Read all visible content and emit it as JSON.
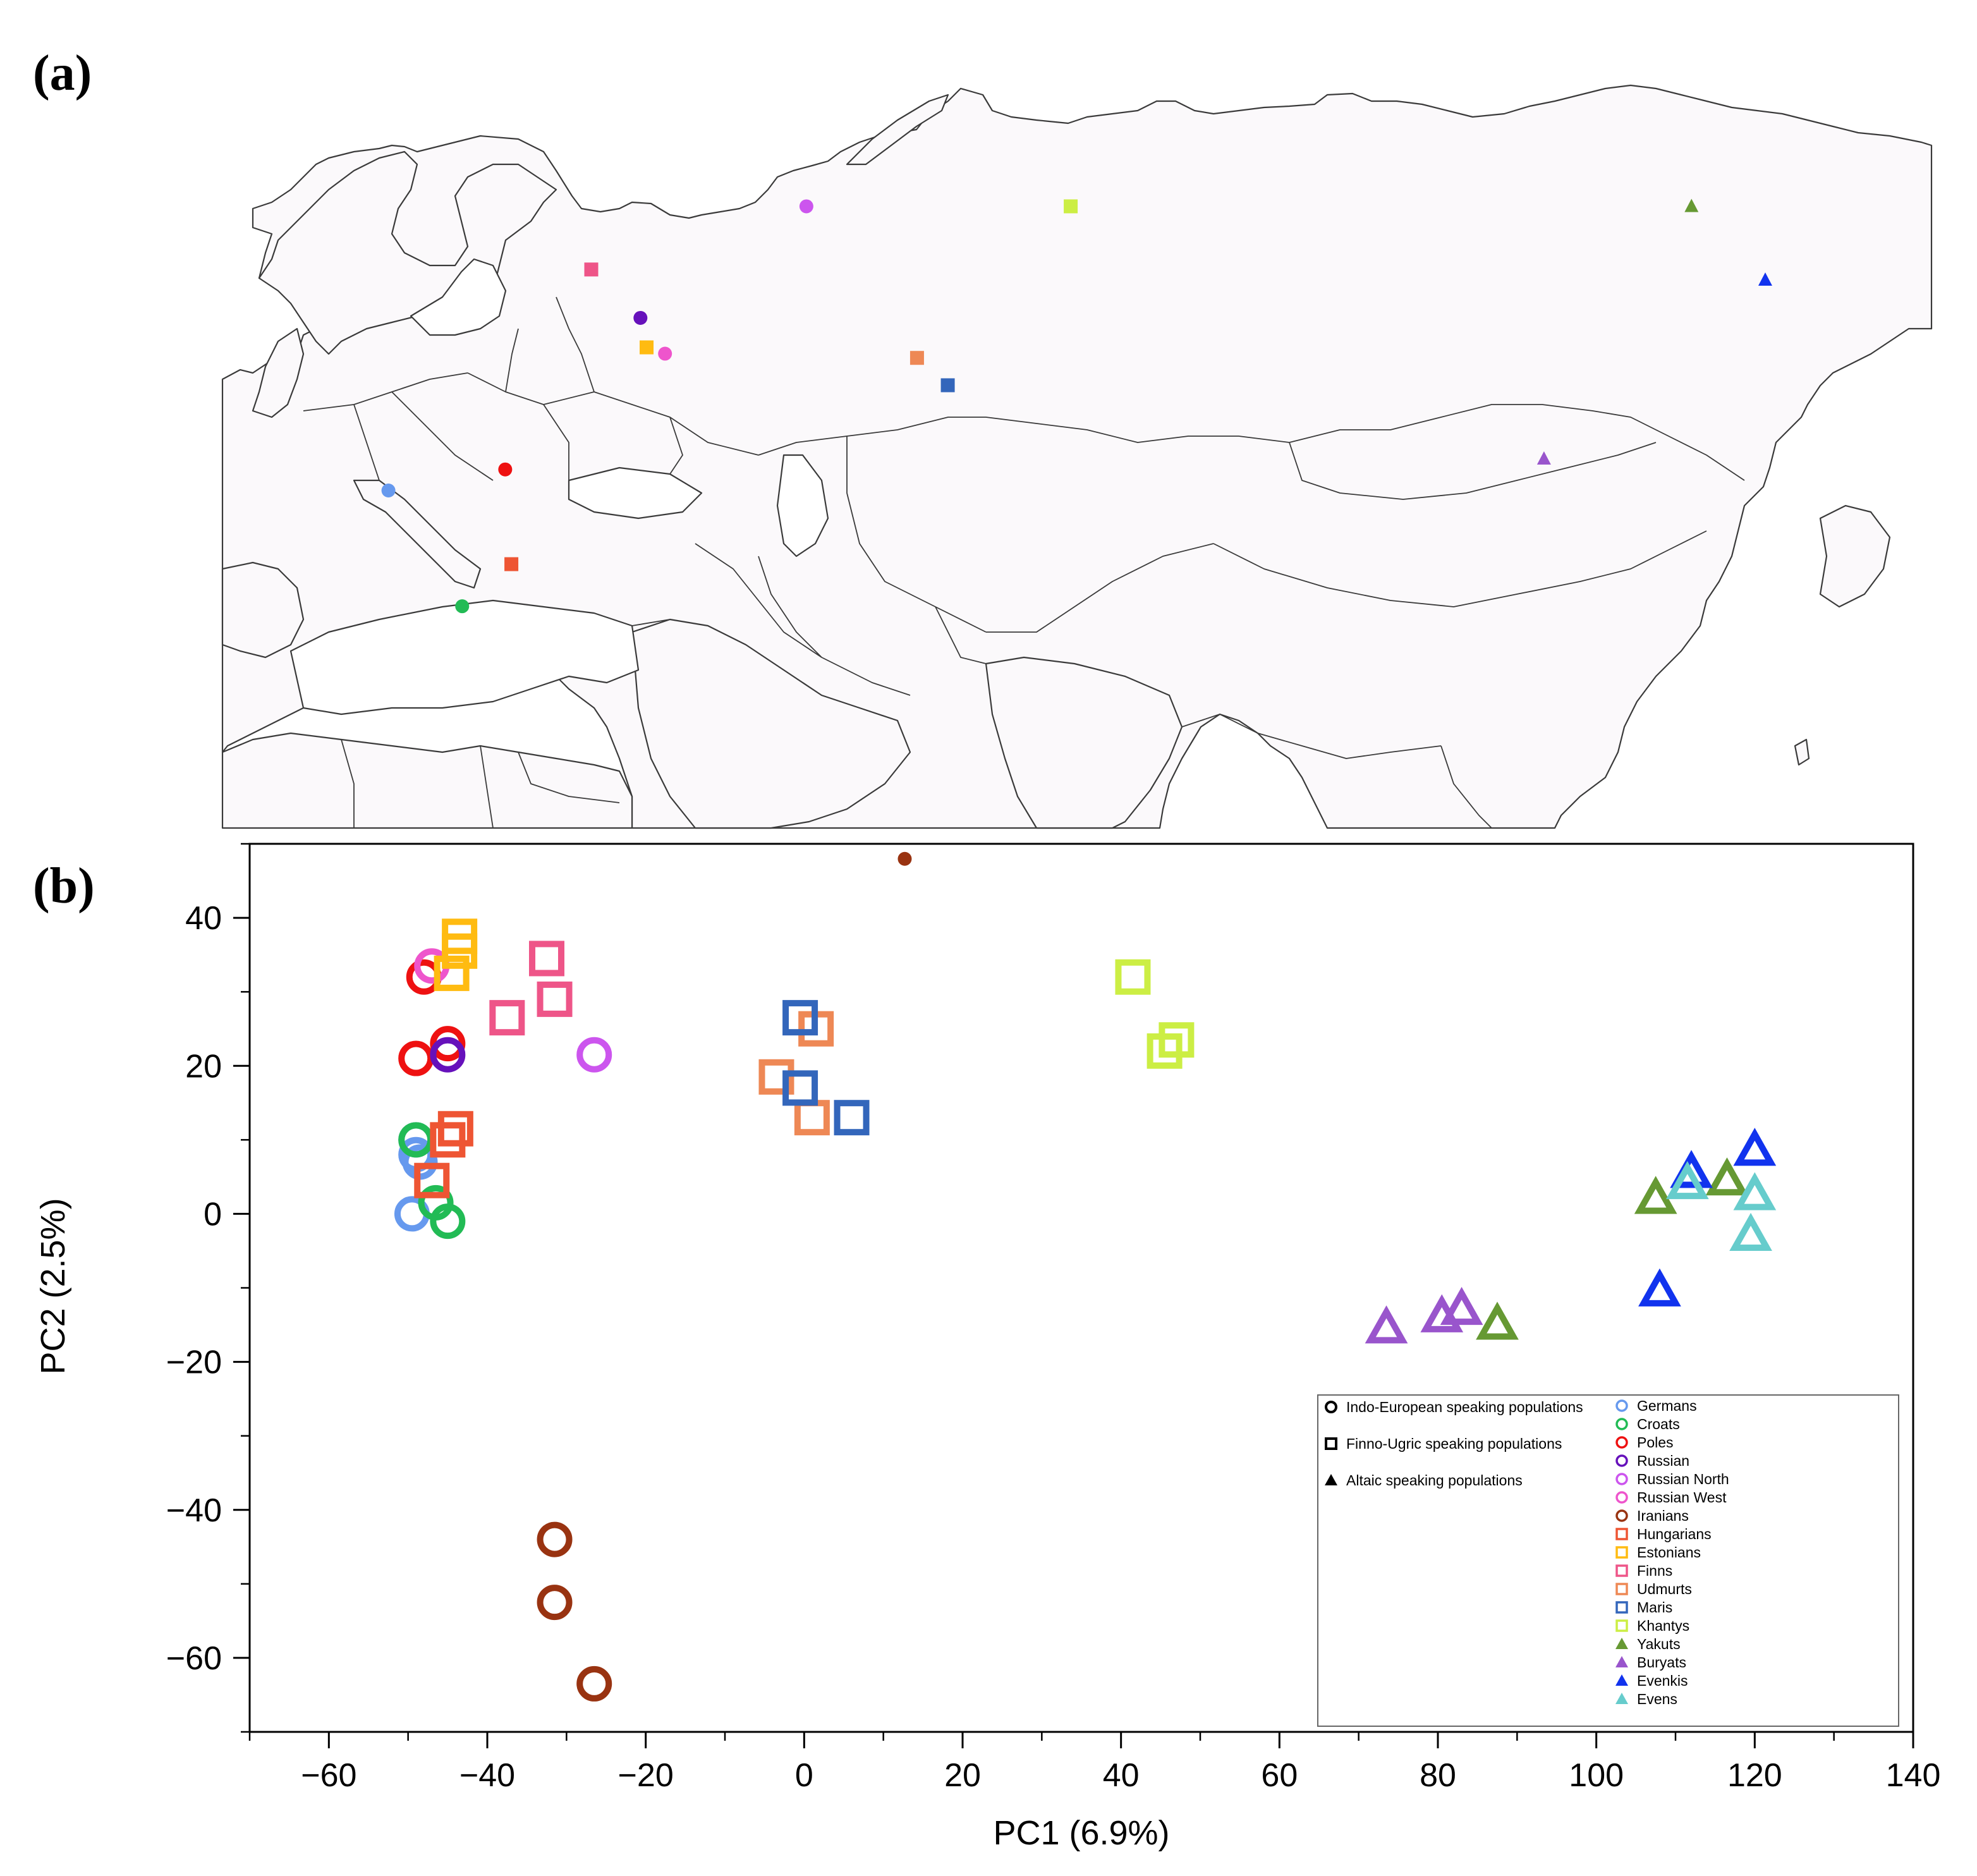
{
  "panel_a": {
    "label": "(a)",
    "sites": [
      {
        "population": "Germans",
        "shape": "circle",
        "color": "#6699ee",
        "lon": 10,
        "lat": 51
      },
      {
        "population": "Croats",
        "shape": "circle",
        "color": "#22bb55",
        "lon": 16,
        "lat": 45.5
      },
      {
        "population": "Poles",
        "shape": "circle",
        "color": "#ee1111",
        "lon": 19.5,
        "lat": 52
      },
      {
        "population": "Russian",
        "shape": "circle",
        "color": "#6611bb",
        "lon": 30.5,
        "lat": 59.2
      },
      {
        "population": "Russian North",
        "shape": "circle",
        "color": "#cc55ee",
        "lon": 44,
        "lat": 64.5
      },
      {
        "population": "Russian West",
        "shape": "circle",
        "color": "#ee55cc",
        "lon": 32.5,
        "lat": 57.5
      },
      {
        "population": "Iranians",
        "shape": "circle",
        "color": "#993311",
        "lon": 52,
        "lat": 33.5
      },
      {
        "population": "Hungarians",
        "shape": "square",
        "color": "#ee5533",
        "lon": 20,
        "lat": 47.5
      },
      {
        "population": "Estonians",
        "shape": "square",
        "color": "#ffbb11",
        "lon": 31,
        "lat": 57.8
      },
      {
        "population": "Finns",
        "shape": "square",
        "color": "#ee5588",
        "lon": 26.5,
        "lat": 61.5
      },
      {
        "population": "Udmurts",
        "shape": "square",
        "color": "#ee8855",
        "lon": 53,
        "lat": 57.3
      },
      {
        "population": "Maris",
        "shape": "square",
        "color": "#3366bb",
        "lon": 55.5,
        "lat": 56
      },
      {
        "population": "Khantys",
        "shape": "square",
        "color": "#ccee44",
        "lon": 65.5,
        "lat": 64.5
      },
      {
        "population": "Yakuts",
        "shape": "triangle",
        "color": "#669933",
        "lon": 116,
        "lat": 64.5
      },
      {
        "population": "Buryats",
        "shape": "triangle",
        "color": "#9955cc",
        "lon": 104,
        "lat": 52.5
      },
      {
        "population": "Evenkis",
        "shape": "triangle",
        "color": "#1133ee",
        "lon": 122,
        "lat": 61
      }
    ]
  },
  "panel_b": {
    "label": "(b)",
    "legend": {
      "groups": [
        {
          "shape": "circle",
          "label": "Indo-European speaking populations"
        },
        {
          "shape": "square",
          "label": "Finno-Ugric speaking populations"
        },
        {
          "shape": "triangle",
          "label": "Altaic speaking populations"
        }
      ]
    }
  },
  "chart_data": {
    "type": "scatter",
    "title": "",
    "xlabel": "PC1 (6.9%)",
    "ylabel": "PC2 (2.5%)",
    "xlim": [
      -70,
      140
    ],
    "ylim": [
      -70,
      50
    ],
    "xticks": [
      -60,
      -40,
      -20,
      0,
      20,
      40,
      60,
      80,
      100,
      120,
      140
    ],
    "yticks": [
      -60,
      -40,
      -20,
      0,
      20,
      40
    ],
    "xtick_labels": [
      "−60",
      "−40",
      "−20",
      "0",
      "20",
      "40",
      "60",
      "80",
      "100",
      "120",
      "140"
    ],
    "ytick_labels": [
      "−60",
      "−40",
      "−20",
      "0",
      "20",
      "40"
    ],
    "legend_position": "bottom-right",
    "series": [
      {
        "name": "Germans",
        "shape": "circle",
        "color": "#6699ee",
        "points": [
          [
            -49,
            10
          ],
          [
            -49,
            8
          ],
          [
            -48.5,
            7
          ],
          [
            -49.5,
            0
          ]
        ]
      },
      {
        "name": "Croats",
        "shape": "circle",
        "color": "#22bb55",
        "points": [
          [
            -49,
            10
          ],
          [
            -46.5,
            1.5
          ],
          [
            -45,
            -1
          ]
        ]
      },
      {
        "name": "Poles",
        "shape": "circle",
        "color": "#ee1111",
        "points": [
          [
            -48,
            32
          ],
          [
            -49,
            21
          ],
          [
            -45,
            23
          ]
        ]
      },
      {
        "name": "Russian",
        "shape": "circle",
        "color": "#6611bb",
        "points": [
          [
            -45,
            21.5
          ]
        ]
      },
      {
        "name": "Russian North",
        "shape": "circle",
        "color": "#cc55ee",
        "points": [
          [
            -26.5,
            21.5
          ]
        ]
      },
      {
        "name": "Russian West",
        "shape": "circle",
        "color": "#ee55cc",
        "points": [
          [
            -47,
            33.5
          ]
        ]
      },
      {
        "name": "Iranians",
        "shape": "circle",
        "color": "#993311",
        "points": [
          [
            -31.5,
            -44
          ],
          [
            -31.5,
            -52.5
          ],
          [
            -26.5,
            -63.5
          ]
        ]
      },
      {
        "name": "Hungarians",
        "shape": "square",
        "color": "#ee5533",
        "points": [
          [
            -45,
            10
          ],
          [
            -44,
            11.5
          ],
          [
            -47,
            4.5
          ]
        ]
      },
      {
        "name": "Estonians",
        "shape": "square",
        "color": "#ffbb11",
        "points": [
          [
            -43.5,
            37.5
          ],
          [
            -43.5,
            35.5
          ],
          [
            -44.5,
            32.5
          ]
        ]
      },
      {
        "name": "Finns",
        "shape": "square",
        "color": "#ee5588",
        "points": [
          [
            -32.5,
            34.5
          ],
          [
            -37.5,
            26.5
          ],
          [
            -31.5,
            29
          ]
        ]
      },
      {
        "name": "Udmurts",
        "shape": "square",
        "color": "#ee8855",
        "points": [
          [
            1.5,
            25
          ],
          [
            -3.5,
            18.5
          ],
          [
            1,
            13
          ]
        ]
      },
      {
        "name": "Maris",
        "shape": "square",
        "color": "#3366bb",
        "points": [
          [
            -0.5,
            26.5
          ],
          [
            -0.5,
            17
          ],
          [
            6,
            13
          ]
        ]
      },
      {
        "name": "Khantys",
        "shape": "square",
        "color": "#ccee44",
        "points": [
          [
            41.5,
            32
          ],
          [
            45.5,
            22
          ],
          [
            47,
            23.5
          ]
        ]
      },
      {
        "name": "Yakuts",
        "shape": "triangle",
        "color": "#669933",
        "points": [
          [
            107.5,
            2
          ],
          [
            116.5,
            4.5
          ],
          [
            87.5,
            -15
          ]
        ]
      },
      {
        "name": "Buryats",
        "shape": "triangle",
        "color": "#9955cc",
        "points": [
          [
            73.5,
            -15.5
          ],
          [
            80.5,
            -14
          ],
          [
            83,
            -13
          ]
        ]
      },
      {
        "name": "Evenkis",
        "shape": "triangle",
        "color": "#1133ee",
        "points": [
          [
            120,
            8.5
          ],
          [
            112,
            5.5
          ],
          [
            108,
            -10.5
          ]
        ]
      },
      {
        "name": "Evens",
        "shape": "triangle",
        "color": "#66cccc",
        "points": [
          [
            111.5,
            4
          ],
          [
            120,
            2.5
          ],
          [
            119.5,
            -3
          ]
        ]
      }
    ]
  }
}
